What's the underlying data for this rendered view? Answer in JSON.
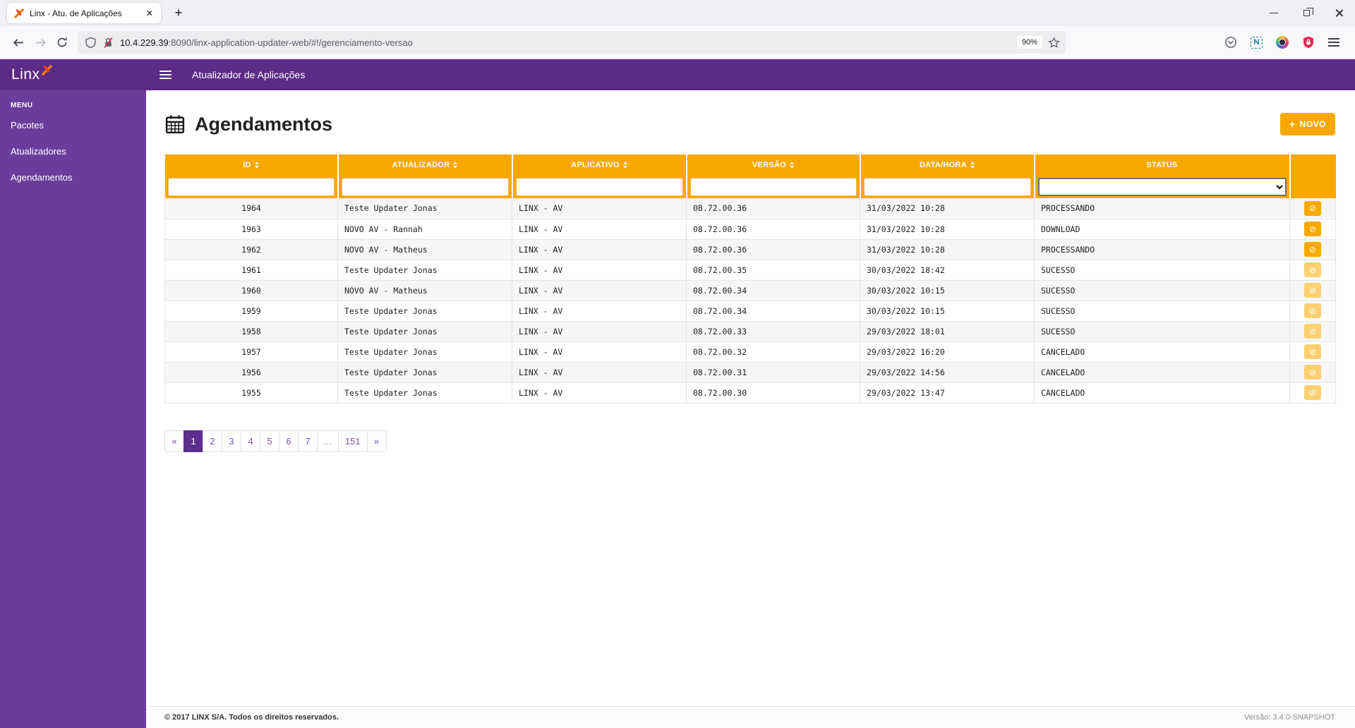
{
  "browser": {
    "tab_title": "Linx - Atu. de Aplicações",
    "new_tab_glyph": "+",
    "url_host": "10.4.229.39",
    "url_path": ":8090/linx-application-updater-web/#!/gerenciamento-versao",
    "zoom_level": "90%",
    "extension_badge": "N"
  },
  "topbar": {
    "title": "Atualizador de Aplicações"
  },
  "sidebar": {
    "logo_text": "Linx",
    "menu_label": "MENU",
    "items": [
      {
        "label": "Pacotes"
      },
      {
        "label": "Atualizadores"
      },
      {
        "label": "Agendamentos"
      }
    ]
  },
  "page": {
    "title": "Agendamentos",
    "new_button_plus": "+",
    "new_button_label": "NOVO"
  },
  "table": {
    "columns": [
      {
        "label": "ID",
        "sortable": true
      },
      {
        "label": "ATUALIZADOR",
        "sortable": true
      },
      {
        "label": "APLICATIVO",
        "sortable": true
      },
      {
        "label": "VERSÃO",
        "sortable": true
      },
      {
        "label": "DATA/HORA",
        "sortable": true
      },
      {
        "label": "STATUS",
        "sortable": false
      }
    ],
    "cancel_glyph": "⊘",
    "rows": [
      {
        "id": "1964",
        "atualizador": "Teste Updater Jonas",
        "aplicativo": "LINX - AV",
        "versao": "08.72.00.36",
        "datahora": "31/03/2022 10:28",
        "status": "PROCESSANDO",
        "cancel_enabled": true
      },
      {
        "id": "1963",
        "atualizador": "NOVO AV - Rannah",
        "aplicativo": "LINX - AV",
        "versao": "08.72.00.36",
        "datahora": "31/03/2022 10:28",
        "status": "DOWNLOAD",
        "cancel_enabled": true
      },
      {
        "id": "1962",
        "atualizador": "NOVO AV - Matheus",
        "aplicativo": "LINX - AV",
        "versao": "08.72.00.36",
        "datahora": "31/03/2022 10:28",
        "status": "PROCESSANDO",
        "cancel_enabled": true
      },
      {
        "id": "1961",
        "atualizador": "Teste Updater Jonas",
        "aplicativo": "LINX - AV",
        "versao": "08.72.00.35",
        "datahora": "30/03/2022 18:42",
        "status": "SUCESSO",
        "cancel_enabled": false
      },
      {
        "id": "1960",
        "atualizador": "NOVO AV - Matheus",
        "aplicativo": "LINX - AV",
        "versao": "08.72.00.34",
        "datahora": "30/03/2022 10:15",
        "status": "SUCESSO",
        "cancel_enabled": false
      },
      {
        "id": "1959",
        "atualizador": "Teste Updater Jonas",
        "aplicativo": "LINX - AV",
        "versao": "08.72.00.34",
        "datahora": "30/03/2022 10:15",
        "status": "SUCESSO",
        "cancel_enabled": false
      },
      {
        "id": "1958",
        "atualizador": "Teste Updater Jonas",
        "aplicativo": "LINX - AV",
        "versao": "08.72.00.33",
        "datahora": "29/03/2022 18:01",
        "status": "SUCESSO",
        "cancel_enabled": false
      },
      {
        "id": "1957",
        "atualizador": "Teste Updater Jonas",
        "aplicativo": "LINX - AV",
        "versao": "08.72.00.32",
        "datahora": "29/03/2022 16:20",
        "status": "CANCELADO",
        "cancel_enabled": false
      },
      {
        "id": "1956",
        "atualizador": "Teste Updater Jonas",
        "aplicativo": "LINX - AV",
        "versao": "08.72.00.31",
        "datahora": "29/03/2022 14:56",
        "status": "CANCELADO",
        "cancel_enabled": false
      },
      {
        "id": "1955",
        "atualizador": "Teste Updater Jonas",
        "aplicativo": "LINX - AV",
        "versao": "08.72.00.30",
        "datahora": "29/03/2022 13:47",
        "status": "CANCELADO",
        "cancel_enabled": false
      }
    ]
  },
  "pagination": {
    "items": [
      {
        "label": "«",
        "type": "prev"
      },
      {
        "label": "1",
        "active": true
      },
      {
        "label": "2"
      },
      {
        "label": "3"
      },
      {
        "label": "4"
      },
      {
        "label": "5"
      },
      {
        "label": "6"
      },
      {
        "label": "7"
      },
      {
        "label": "...",
        "type": "ellipsis"
      },
      {
        "label": "151"
      },
      {
        "label": "»",
        "type": "next"
      }
    ]
  },
  "footer": {
    "copyright": "© 2017 LINX S/A. Todos os direitos reservados.",
    "version": "Versão: 3.4.0-SNAPSHOT"
  },
  "colors": {
    "accent_orange": "#F8A800",
    "disabled_orange": "#FBD173",
    "purple_topbar": "#5C2B85",
    "purple_sidebar": "#6A3D9C",
    "pagination_active": "#5B2D8C",
    "insecure_red": "#E22850"
  }
}
